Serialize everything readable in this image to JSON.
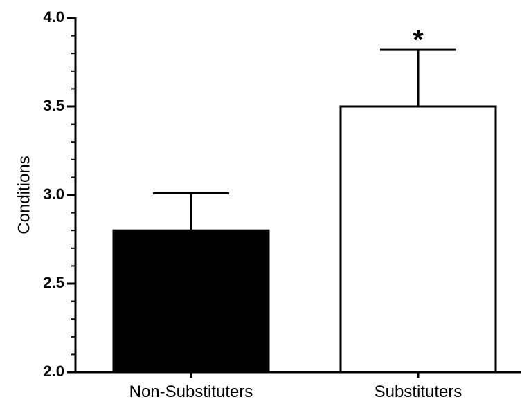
{
  "chart_data": {
    "type": "bar",
    "title": "",
    "xlabel": "",
    "ylabel": "Conditions",
    "ylim": [
      2.0,
      4.0
    ],
    "yticks": [
      "2.0",
      "2.5",
      "3.0",
      "3.5",
      "4.0"
    ],
    "y_minor_step": 0.1,
    "categories": [
      "Non-Substituters",
      "Substituters"
    ],
    "values": [
      2.8,
      3.5
    ],
    "error_upper": [
      3.01,
      3.82
    ],
    "bar_fill": [
      "#000000",
      "#ffffff"
    ],
    "bar_stroke": "#000000",
    "annotations": [
      {
        "category": "Substituters",
        "text": "*"
      }
    ],
    "grid": false,
    "legend": "none"
  }
}
